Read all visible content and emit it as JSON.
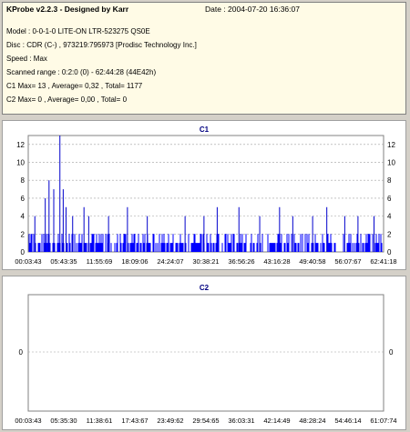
{
  "info": {
    "title": "KProbe v2.2.3 - Designed by Karr",
    "date": "Date : 2004-07-20 16:36:07",
    "model": "Model : 0-0-1-0 LITE-ON LTR-523275      QS0E",
    "disc": "Disc : CDR (C-) , 973219:795973 [Prodisc Technology Inc.]",
    "speed": "Speed : Max",
    "range": "Scanned range : 0:2:0 (0) - 62:44:28 (44E42h)",
    "c1_summary": "C1 Max= 13 , Average= 0,32 , Total= 1177",
    "c2_summary": "C2 Max= 0 , Average= 0,00 , Total= 0"
  },
  "colors": {
    "bars": "#0000ff",
    "spike": "#0000cc",
    "grid": "#a0a0a0",
    "title": "#000080"
  },
  "chart_data": [
    {
      "type": "bar",
      "title": "C1",
      "ylim": [
        0,
        13
      ],
      "yticks": [
        "0",
        "2",
        "4",
        "6",
        "8",
        "10",
        "12"
      ],
      "xticks": [
        "00:03:43",
        "05:43:35",
        "11:55:69",
        "18:09:06",
        "24:24:07",
        "30:38:21",
        "36:56:26",
        "43:16:28",
        "49:40:58",
        "56:07:67",
        "62:41:18"
      ],
      "grid": true,
      "peak_values": [
        {
          "x": "01:10",
          "y": 4
        },
        {
          "x": "03:00",
          "y": 6
        },
        {
          "x": "03:40",
          "y": 8
        },
        {
          "x": "04:30",
          "y": 7
        },
        {
          "x": "05:35",
          "y": 13
        },
        {
          "x": "06:10",
          "y": 7
        },
        {
          "x": "06:40",
          "y": 5
        },
        {
          "x": "07:50",
          "y": 4
        },
        {
          "x": "09:50",
          "y": 5
        },
        {
          "x": "10:40",
          "y": 4
        },
        {
          "x": "14:10",
          "y": 4
        },
        {
          "x": "17:30",
          "y": 5
        },
        {
          "x": "21:00",
          "y": 4
        },
        {
          "x": "27:40",
          "y": 4
        },
        {
          "x": "31:00",
          "y": 4
        },
        {
          "x": "33:20",
          "y": 5
        },
        {
          "x": "37:10",
          "y": 5
        },
        {
          "x": "40:50",
          "y": 4
        },
        {
          "x": "44:20",
          "y": 5
        },
        {
          "x": "46:40",
          "y": 4
        },
        {
          "x": "50:10",
          "y": 4
        },
        {
          "x": "52:40",
          "y": 5
        },
        {
          "x": "55:50",
          "y": 4
        },
        {
          "x": "58:10",
          "y": 4
        },
        {
          "x": "61:00",
          "y": 4
        }
      ],
      "baseline_range": [
        0,
        2
      ]
    },
    {
      "type": "bar",
      "title": "C2",
      "yticks": [
        "0"
      ],
      "xticks": [
        "00:03:43",
        "05:35:30",
        "11:38:61",
        "17:43:67",
        "23:49:62",
        "29:54:65",
        "36:03:31",
        "42:14:49",
        "48:28:24",
        "54:46:14",
        "61:07:74"
      ],
      "grid": true,
      "values": []
    }
  ]
}
